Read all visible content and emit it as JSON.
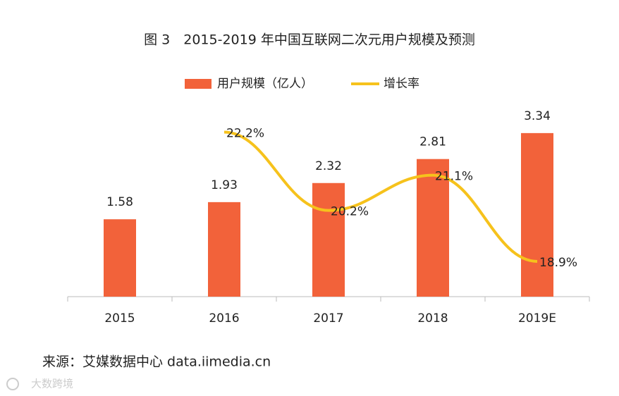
{
  "chart_data": {
    "type": "bar_line",
    "title": "图 3　2015-2019 年中国互联网二次元用户规模及预测",
    "categories": [
      "2015",
      "2016",
      "2017",
      "2018",
      "2019E"
    ],
    "series": [
      {
        "name": "用户规模（亿人）",
        "color": "#f2623a",
        "values": [
          1.58,
          1.93,
          2.32,
          2.81,
          3.34
        ]
      },
      {
        "name": "增长率",
        "color": "#f6c21c",
        "axis": "y2",
        "values": [
          null,
          22.2,
          20.2,
          21.1,
          18.9
        ],
        "value_labels": [
          null,
          "22.2%",
          "20.2%",
          "21.1%",
          "18.9%"
        ]
      }
    ],
    "ylim": [
      0,
      4
    ],
    "y2lim": [
      18,
      23
    ],
    "legend": "top",
    "source": "来源：艾媒数据中心 data.iimedia.cn",
    "watermark": "大数跨境"
  }
}
